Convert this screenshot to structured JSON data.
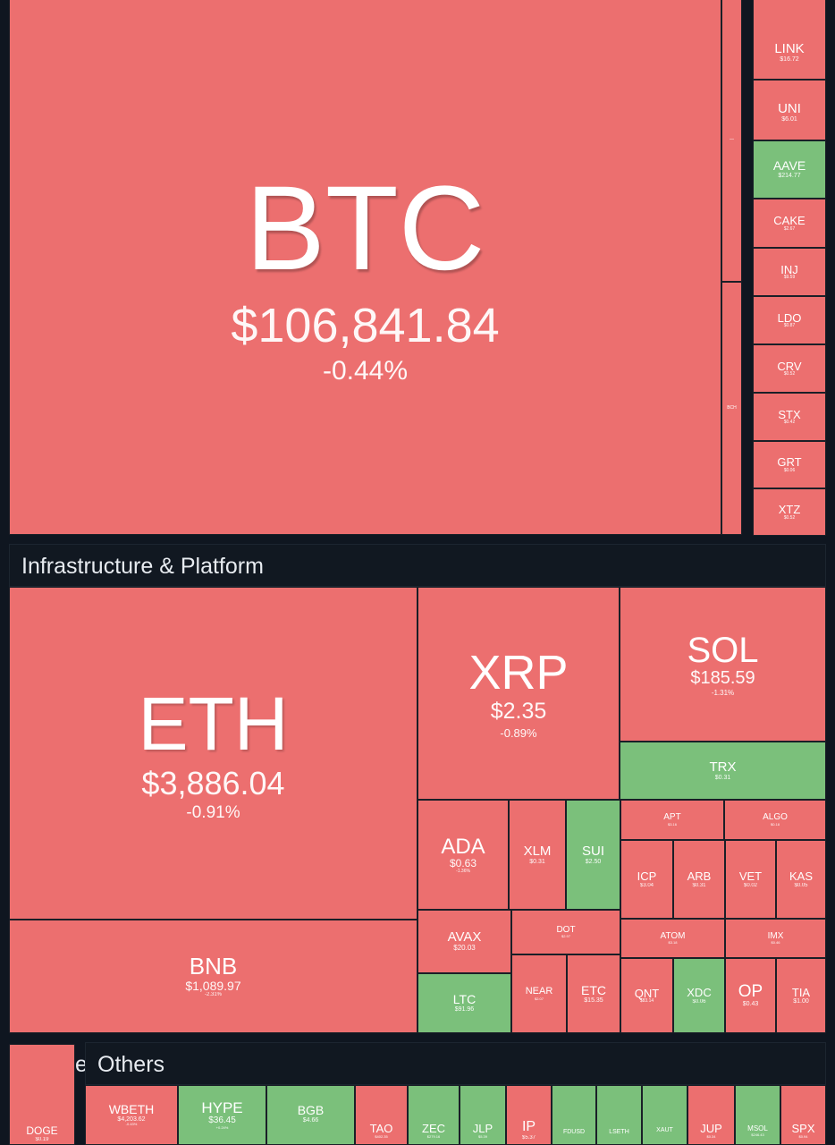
{
  "colors": {
    "down": "#ec6f6f",
    "up": "#7bc07b",
    "background": "#0f1620",
    "header": "#111821"
  },
  "sections": {
    "infrastructure_title": "Infrastructure & Platform",
    "others_title": "Others",
    "partial_title_fragment": "es"
  },
  "tiles": {
    "btc": {
      "symbol": "BTC",
      "price": "$106,841.84",
      "change": "-0.44%"
    },
    "eth": {
      "symbol": "ETH",
      "price": "$3,886.04",
      "change": "-0.91%"
    },
    "xrp": {
      "symbol": "XRP",
      "price": "$2.35",
      "change": "-0.89%"
    },
    "sol": {
      "symbol": "SOL",
      "price": "$185.59",
      "change": "-1.31%"
    },
    "trx": {
      "symbol": "TRX",
      "price": "$0.31"
    },
    "bnb": {
      "symbol": "BNB",
      "price": "$1,089.97",
      "change": "-2.31%"
    },
    "ada": {
      "symbol": "ADA",
      "price": "$0.63",
      "change": "-1.36%"
    },
    "xlm": {
      "symbol": "XLM",
      "price": "$0.31"
    },
    "sui": {
      "symbol": "SUI",
      "price": "$2.50"
    },
    "avax": {
      "symbol": "AVAX",
      "price": "$20.03"
    },
    "dot": {
      "symbol": "DOT",
      "price": "$2.97"
    },
    "ltc": {
      "symbol": "LTC",
      "price": "$91.96"
    },
    "near": {
      "symbol": "NEAR",
      "price": "$2.07"
    },
    "etc": {
      "symbol": "ETC",
      "price": "$15.35"
    },
    "apt": {
      "symbol": "APT",
      "price": "$3.16"
    },
    "algo": {
      "symbol": "ALGO",
      "price": "$0.18"
    },
    "icp": {
      "symbol": "ICP",
      "price": "$3.04"
    },
    "arb": {
      "symbol": "ARB",
      "price": "$0.31"
    },
    "vet": {
      "symbol": "VET",
      "price": "$0.02"
    },
    "kas": {
      "symbol": "KAS",
      "price": "$0.05"
    },
    "atom": {
      "symbol": "ATOM",
      "price": "$3.18"
    },
    "imx": {
      "symbol": "IMX",
      "price": "$0.46"
    },
    "qnt": {
      "symbol": "QNT",
      "price": "$83.14"
    },
    "xdc": {
      "symbol": "XDC",
      "price": "$0.06"
    },
    "op": {
      "symbol": "OP",
      "price": "$0.43"
    },
    "tia": {
      "symbol": "TIA",
      "price": "$1.00"
    },
    "link": {
      "symbol": "LINK",
      "price": "$16.72"
    },
    "uni": {
      "symbol": "UNI",
      "price": "$6.01"
    },
    "aave": {
      "symbol": "AAVE",
      "price": "$214.77"
    },
    "cake": {
      "symbol": "CAKE",
      "price": "$2.67"
    },
    "inj": {
      "symbol": "INJ",
      "price": "$9.59"
    },
    "ldo": {
      "symbol": "LDO",
      "price": "$0.87"
    },
    "crv": {
      "symbol": "CRV",
      "price": "$0.52"
    },
    "stx": {
      "symbol": "STX",
      "price": "$0.42"
    },
    "grt": {
      "symbol": "GRT",
      "price": "$0.06"
    },
    "xtz": {
      "symbol": "XTZ",
      "price": "$0.52"
    },
    "bch": {
      "symbol": "BCH"
    },
    "doge": {
      "symbol": "DOGE",
      "price": "$0.19"
    },
    "wbeth": {
      "symbol": "WBETH",
      "price": "$4,203.62",
      "change": "-0.43%"
    },
    "hype": {
      "symbol": "HYPE",
      "price": "$36.45",
      "change": "+0.24%"
    },
    "bgb": {
      "symbol": "BGB",
      "price": "$4.66"
    },
    "tao": {
      "symbol": "TAO",
      "price": "$402.35"
    },
    "zec": {
      "symbol": "ZEC",
      "price": "$279.16"
    },
    "jlp": {
      "symbol": "JLP",
      "price": "$5.39"
    },
    "ip": {
      "symbol": "IP",
      "price": "$5.37"
    },
    "fdusd": {
      "symbol": "FDUSD"
    },
    "lseth": {
      "symbol": "LSETH"
    },
    "xaut": {
      "symbol": "XAUT"
    },
    "jup": {
      "symbol": "JUP",
      "price": "$0.34"
    },
    "msol": {
      "symbol": "MSOL",
      "price": "$246.43"
    },
    "spx": {
      "symbol": "SPX",
      "price": "$0.94"
    }
  }
}
